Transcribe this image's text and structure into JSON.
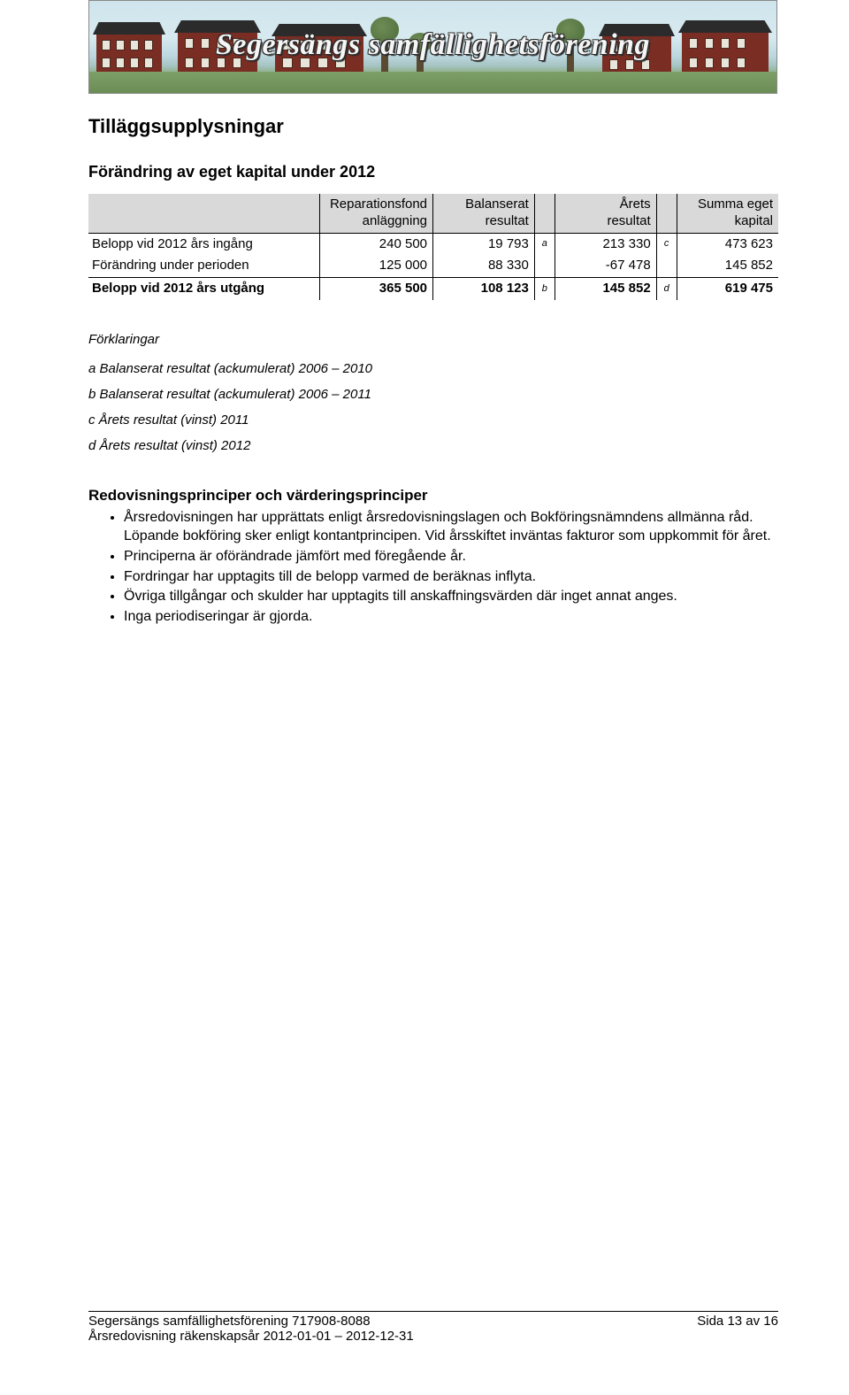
{
  "banner": {
    "title": "Segersängs samfällighetsförening"
  },
  "headings": {
    "section": "Tilläggsupplysningar",
    "sub": "Förändring av eget kapital under 2012",
    "principles": "Redovisningsprinciper och värderingsprinciper"
  },
  "table": {
    "headers": {
      "col1": "Reparationsfond anläggning",
      "col2": "Balanserat resultat",
      "col3": "Årets resultat",
      "col4": "Summa eget kapital"
    },
    "rows": {
      "r1": {
        "label": "Belopp vid 2012 års ingång",
        "v1": "240 500",
        "v2": "19 793",
        "n2": "a",
        "v3": "213 330",
        "n3": "c",
        "v4": "473 623"
      },
      "r2": {
        "label": "Förändring under perioden",
        "v1": "125 000",
        "v2": "88 330",
        "n2": "",
        "v3": "-67 478",
        "n3": "",
        "v4": "145 852"
      },
      "r3": {
        "label": "Belopp vid 2012 års utgång",
        "v1": "365 500",
        "v2": "108 123",
        "n2": "b",
        "v3": "145 852",
        "n3": "d",
        "v4": "619 475"
      }
    }
  },
  "explanations": {
    "header": "Förklaringar",
    "a": "a  Balanserat resultat (ackumulerat) 2006 – 2010",
    "b": "b  Balanserat resultat (ackumulerat) 2006 – 2011",
    "c": "c  Årets resultat (vinst) 2011",
    "d": "d  Årets resultat (vinst) 2012"
  },
  "principles": {
    "items": {
      "i1": "Årsredovisningen har upprättats enligt årsredovisningslagen och Bokföringsnämndens allmänna råd. Löpande bokföring sker enligt kontantprincipen. Vid årsskiftet inväntas fakturor som uppkommit för året.",
      "i2": "Principerna är oförändrade jämfört med föregående år.",
      "i3": "Fordringar har upptagits till de belopp varmed de beräknas inflyta.",
      "i4": "Övriga tillgångar och skulder har upptagits till anskaffningsvärden där inget annat anges.",
      "i5": "Inga periodiseringar är gjorda."
    }
  },
  "footer": {
    "left1": "Segersängs samfällighetsförening 717908-8088",
    "left2": "Årsredovisning räkenskapsår 2012-01-01 – 2012-12-31",
    "right_prefix": "Sida ",
    "right_page": "13",
    "right_suffix": " av 16"
  }
}
